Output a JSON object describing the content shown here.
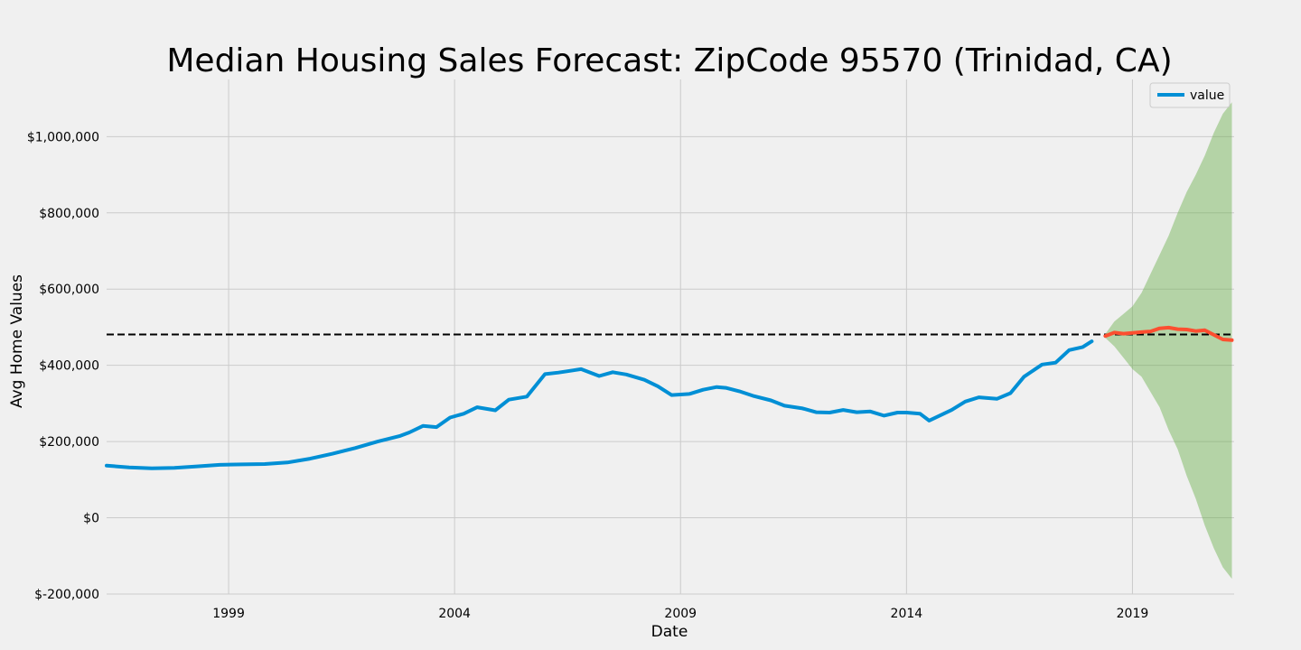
{
  "chart_data": {
    "type": "line",
    "title": "Median Housing Sales Forecast: ZipCode 95570 (Trinidad, CA)",
    "xlabel": "Date",
    "ylabel": "Avg Home Values",
    "xlim": [
      1996.3,
      2021.25
    ],
    "ylim": [
      -200000,
      1150000
    ],
    "x_ticks": [
      {
        "value": 1999,
        "label": "1999"
      },
      {
        "value": 2004,
        "label": "2004"
      },
      {
        "value": 2009,
        "label": "2009"
      },
      {
        "value": 2014,
        "label": "2014"
      },
      {
        "value": 2019,
        "label": "2019"
      }
    ],
    "y_ticks": [
      {
        "value": -200000,
        "label": "$-200,000"
      },
      {
        "value": 0,
        "label": "$0"
      },
      {
        "value": 200000,
        "label": "$200,000"
      },
      {
        "value": 400000,
        "label": "$400,000"
      },
      {
        "value": 600000,
        "label": "$600,000"
      },
      {
        "value": 800000,
        "label": "$800,000"
      },
      {
        "value": 1000000,
        "label": "$1,000,000"
      }
    ],
    "grid": true,
    "legend": {
      "position": "top-right",
      "entries": [
        {
          "label": "value",
          "color": "#008fd5"
        }
      ]
    },
    "reference_line": {
      "value": 481000,
      "style": "dashed",
      "color": "#000000"
    },
    "series": [
      {
        "name": "value",
        "color": "#008fd5",
        "x": [
          1996.3,
          1996.8,
          1997.3,
          1997.8,
          1998.3,
          1998.8,
          1999.3,
          1999.8,
          2000.3,
          2000.8,
          2001.3,
          2001.8,
          2002.3,
          2002.8,
          2003.0,
          2003.3,
          2003.6,
          2003.9,
          2004.2,
          2004.5,
          2004.9,
          2005.2,
          2005.6,
          2006.0,
          2006.3,
          2006.8,
          2007.2,
          2007.5,
          2007.8,
          2008.2,
          2008.5,
          2008.8,
          2009.2,
          2009.5,
          2009.8,
          2010.0,
          2010.3,
          2010.6,
          2011.0,
          2011.3,
          2011.7,
          2012.0,
          2012.3,
          2012.6,
          2012.9,
          2013.2,
          2013.5,
          2013.8,
          2014.0,
          2014.3,
          2014.5,
          2014.7,
          2015.0,
          2015.3,
          2015.6,
          2016.0,
          2016.3,
          2016.6,
          2017.0,
          2017.3,
          2017.6,
          2017.9,
          2018.1
        ],
        "values": [
          137000,
          132000,
          130000,
          131000,
          135000,
          139000,
          140000,
          141000,
          145000,
          155000,
          168000,
          183000,
          200000,
          215000,
          224000,
          241000,
          238000,
          263000,
          273000,
          290000,
          282000,
          310000,
          318000,
          377000,
          381000,
          390000,
          372000,
          382000,
          376000,
          362000,
          345000,
          322000,
          325000,
          336000,
          343000,
          341000,
          332000,
          320000,
          308000,
          294000,
          287000,
          277000,
          276000,
          283000,
          277000,
          279000,
          268000,
          276000,
          276000,
          273000,
          255000,
          266000,
          283000,
          305000,
          316000,
          312000,
          327000,
          370000,
          402000,
          407000,
          440000,
          448000,
          463000
        ]
      },
      {
        "name": "",
        "color": "#fc4f30",
        "x": [
          2018.4,
          2018.6,
          2018.8,
          2019.0,
          2019.2,
          2019.4,
          2019.6,
          2019.8,
          2020.0,
          2020.2,
          2020.4,
          2020.6,
          2020.8,
          2021.0,
          2021.2
        ],
        "values": [
          477000,
          486000,
          483000,
          485000,
          487000,
          489000,
          497000,
          499000,
          495000,
          494000,
          490000,
          492000,
          480000,
          468000,
          466000
        ]
      }
    ],
    "confidence_band": {
      "color": "#6ab04c",
      "x": [
        2018.4,
        2018.6,
        2018.8,
        2019.0,
        2019.2,
        2019.4,
        2019.6,
        2019.8,
        2020.0,
        2020.2,
        2020.4,
        2020.6,
        2020.8,
        2021.0,
        2021.2
      ],
      "upper": [
        482000,
        515000,
        535000,
        555000,
        590000,
        640000,
        690000,
        740000,
        800000,
        855000,
        900000,
        950000,
        1010000,
        1060000,
        1090000
      ],
      "lower": [
        472000,
        450000,
        420000,
        390000,
        370000,
        330000,
        290000,
        230000,
        180000,
        110000,
        50000,
        -20000,
        -80000,
        -130000,
        -160000
      ]
    }
  }
}
